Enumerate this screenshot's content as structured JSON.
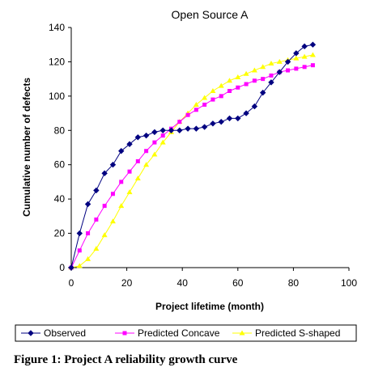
{
  "chart_data": {
    "type": "line",
    "title": "Open Source A",
    "xlabel": "Project lifetime (month)",
    "ylabel": "Cumulative number of defects",
    "xlim": [
      0,
      100
    ],
    "ylim": [
      0,
      140
    ],
    "xticks": [
      0,
      20,
      40,
      60,
      80,
      100
    ],
    "yticks": [
      0,
      20,
      40,
      60,
      80,
      100,
      120,
      140
    ],
    "grid": false,
    "legend_position": "bottom",
    "series": [
      {
        "name": "Observed",
        "color": "#000080",
        "marker": "diamond",
        "x": [
          0,
          3,
          6,
          9,
          12,
          15,
          18,
          21,
          24,
          27,
          30,
          33,
          36,
          39,
          42,
          45,
          48,
          51,
          54,
          57,
          60,
          63,
          66,
          69,
          72,
          75,
          78,
          81,
          84,
          87
        ],
        "y": [
          0,
          20,
          37,
          45,
          55,
          60,
          68,
          72,
          76,
          77,
          79,
          80,
          80,
          80,
          81,
          81,
          82,
          84,
          85,
          87,
          87,
          90,
          94,
          102,
          108,
          114,
          120,
          125,
          129,
          130
        ]
      },
      {
        "name": "Predicted Concave",
        "color": "#ff00ff",
        "marker": "square",
        "x": [
          0,
          3,
          6,
          9,
          12,
          15,
          18,
          21,
          24,
          27,
          30,
          33,
          36,
          39,
          42,
          45,
          48,
          51,
          54,
          57,
          60,
          63,
          66,
          69,
          72,
          75,
          78,
          81,
          84,
          87
        ],
        "y": [
          0,
          10,
          20,
          28,
          36,
          43,
          50,
          56,
          62,
          68,
          73,
          77,
          81,
          85,
          89,
          92,
          95,
          98,
          100,
          103,
          105,
          107,
          109,
          110,
          112,
          114,
          115,
          116,
          117,
          118
        ]
      },
      {
        "name": "Predicted S-shaped",
        "color": "#ffff00",
        "marker": "triangle",
        "x": [
          0,
          3,
          6,
          9,
          12,
          15,
          18,
          21,
          24,
          27,
          30,
          33,
          36,
          39,
          42,
          45,
          48,
          51,
          54,
          57,
          60,
          63,
          66,
          69,
          72,
          75,
          78,
          81,
          84,
          87
        ],
        "y": [
          0,
          1,
          5,
          11,
          19,
          27,
          36,
          44,
          52,
          60,
          66,
          73,
          79,
          85,
          90,
          95,
          99,
          103,
          106,
          109,
          111,
          113,
          115,
          117,
          119,
          120,
          121,
          122,
          123,
          124
        ]
      }
    ]
  },
  "caption": "Figure 1: Project A reliability growth curve"
}
